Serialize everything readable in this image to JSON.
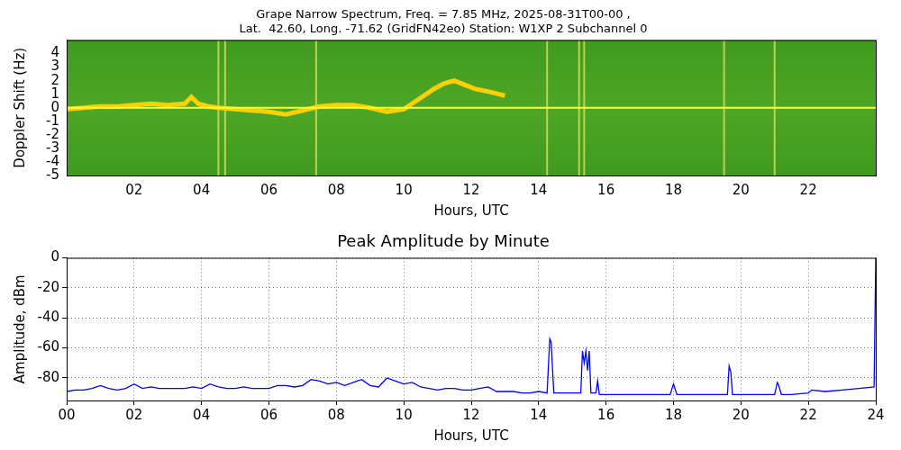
{
  "chart_data": [
    {
      "type": "spectrogram",
      "title": [
        "Grape Narrow Spectrum, Freq. = 7.85 MHz, 2025-08-31T00-00 ,",
        "Lat.  42.60, Long. -71.62 (GridFN42eo) Station: W1XP 2 Subchannel 0"
      ],
      "x_label": "Hours, UTC",
      "y_label": "Doppler Shift (Hz)",
      "xlim": [
        0,
        24
      ],
      "ylim": [
        -5,
        5
      ],
      "xticks": [
        {
          "value": 2,
          "label": "02"
        },
        {
          "value": 4,
          "label": "04"
        },
        {
          "value": 6,
          "label": "06"
        },
        {
          "value": 8,
          "label": "08"
        },
        10,
        12,
        14,
        16,
        18,
        20,
        22
      ],
      "yticks": [
        -5,
        -4,
        -3,
        -2,
        -1,
        0,
        1,
        2,
        3,
        4
      ],
      "grid": false,
      "series": [
        {
          "color": "#ffff33",
          "x": [
            0,
            24
          ],
          "values": [
            0,
            0
          ]
        },
        {
          "color": "#ffd000",
          "x": [
            0,
            0.5,
            1,
            1.5,
            2,
            2.5,
            3,
            3.5,
            3.7,
            3.9,
            4.2,
            4.5,
            5,
            5.5,
            6,
            6.5,
            7,
            7.5,
            8,
            8.5,
            9,
            9.5,
            10,
            10.3,
            10.6,
            10.9,
            11.2,
            11.5,
            11.8,
            12.1,
            12.5,
            13
          ],
          "values": [
            -0.1,
            0,
            0.1,
            0.1,
            0.2,
            0.3,
            0.2,
            0.3,
            0.8,
            0.3,
            0.1,
            0,
            -0.1,
            -0.2,
            -0.3,
            -0.5,
            -0.2,
            0.1,
            0.2,
            0.2,
            0,
            -0.3,
            -0.1,
            0.4,
            0.9,
            1.4,
            1.8,
            2.0,
            1.7,
            1.4,
            1.2,
            0.9
          ]
        }
      ],
      "vertical_lines": [
        4.5,
        4.7,
        7.4,
        14.25,
        15.2,
        15.35,
        19.5,
        21.0
      ]
    },
    {
      "type": "line",
      "title": "Peak Amplitude by Minute",
      "x_label": "Hours, UTC",
      "y_label": "Amplitude, dBm",
      "xlim": [
        0,
        24
      ],
      "ylim": [
        -95,
        0
      ],
      "xticks": [
        {
          "value": 0,
          "label": "00"
        },
        {
          "value": 2,
          "label": "02"
        },
        {
          "value": 4,
          "label": "04"
        },
        {
          "value": 6,
          "label": "06"
        },
        {
          "value": 8,
          "label": "08"
        },
        10,
        12,
        14,
        16,
        18,
        20,
        22,
        24
      ],
      "yticks": [
        -80,
        -60,
        -40,
        -20,
        0
      ],
      "grid": true,
      "series": [
        {
          "color": "#0000ff",
          "x": [
            0,
            0.25,
            0.5,
            0.75,
            1,
            1.25,
            1.5,
            1.75,
            2,
            2.25,
            2.5,
            2.75,
            3,
            3.25,
            3.5,
            3.75,
            4,
            4.25,
            4.5,
            4.75,
            5,
            5.25,
            5.5,
            5.75,
            6,
            6.25,
            6.5,
            6.75,
            7,
            7.25,
            7.5,
            7.75,
            8,
            8.25,
            8.5,
            8.75,
            9,
            9.25,
            9.5,
            9.75,
            10,
            10.25,
            10.5,
            10.75,
            11,
            11.25,
            11.5,
            11.75,
            12,
            12.25,
            12.5,
            12.75,
            13,
            13.25,
            13.5,
            13.75,
            14,
            14.25,
            14.33,
            14.37,
            14.45,
            14.75,
            15,
            15.25,
            15.3,
            15.35,
            15.4,
            15.45,
            15.5,
            15.55,
            15.6,
            15.7,
            15.75,
            15.8,
            16,
            16.5,
            17,
            17.5,
            17.9,
            18,
            18.1,
            18.5,
            19,
            19.5,
            19.6,
            19.65,
            19.7,
            19.75,
            20,
            20.5,
            21,
            21.08,
            21.12,
            21.2,
            21.5,
            22,
            22.1,
            22.5,
            23,
            23.5,
            23.95,
            24
          ],
          "values": [
            -89,
            -88,
            -88,
            -87,
            -85,
            -87,
            -88,
            -87,
            -84,
            -87,
            -86,
            -87,
            -87,
            -87,
            -87,
            -86,
            -87,
            -84,
            -86,
            -87,
            -87,
            -86,
            -87,
            -87,
            -87,
            -85,
            -85,
            -86,
            -85,
            -81,
            -82,
            -84,
            -83,
            -85,
            -83,
            -81,
            -85,
            -86,
            -80,
            -82,
            -84,
            -83,
            -86,
            -87,
            -88,
            -87,
            -87,
            -88,
            -88,
            -87,
            -86,
            -89,
            -89,
            -89,
            -90,
            -90,
            -89,
            -90,
            -54,
            -56,
            -90,
            -90,
            -90,
            -90,
            -62,
            -70,
            -62,
            -75,
            -62,
            -90,
            -90,
            -90,
            -82,
            -91,
            -91,
            -91,
            -91,
            -91,
            -91,
            -84,
            -91,
            -91,
            -91,
            -91,
            -91,
            -72,
            -76,
            -91,
            -91,
            -91,
            -91,
            -83,
            -85,
            -91,
            -91,
            -90,
            -88,
            -89,
            -88,
            -87,
            -86,
            0
          ]
        }
      ]
    }
  ]
}
